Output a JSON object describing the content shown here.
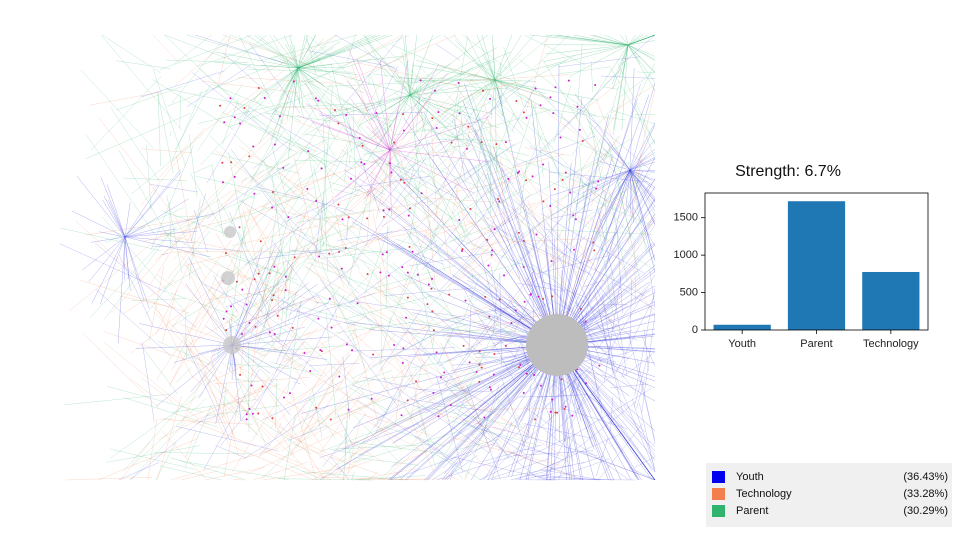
{
  "chart_data": {
    "type": "bar",
    "title": "Strength: 6.7%",
    "categories": [
      "Youth",
      "Parent",
      "Technology"
    ],
    "values": [
      70,
      1720,
      775
    ],
    "color": "#1f77b4",
    "ylim": [
      0,
      1830
    ],
    "yticks": [
      0,
      500,
      1000,
      1500
    ]
  },
  "legend": {
    "items": [
      {
        "label": "Youth",
        "color": "#0000f0",
        "share": "(36.43%)"
      },
      {
        "label": "Technology",
        "color": "#f27f4c",
        "share": "(33.28%)"
      },
      {
        "label": "Parent",
        "color": "#2fb36f",
        "share": "(30.29%)"
      }
    ]
  }
}
